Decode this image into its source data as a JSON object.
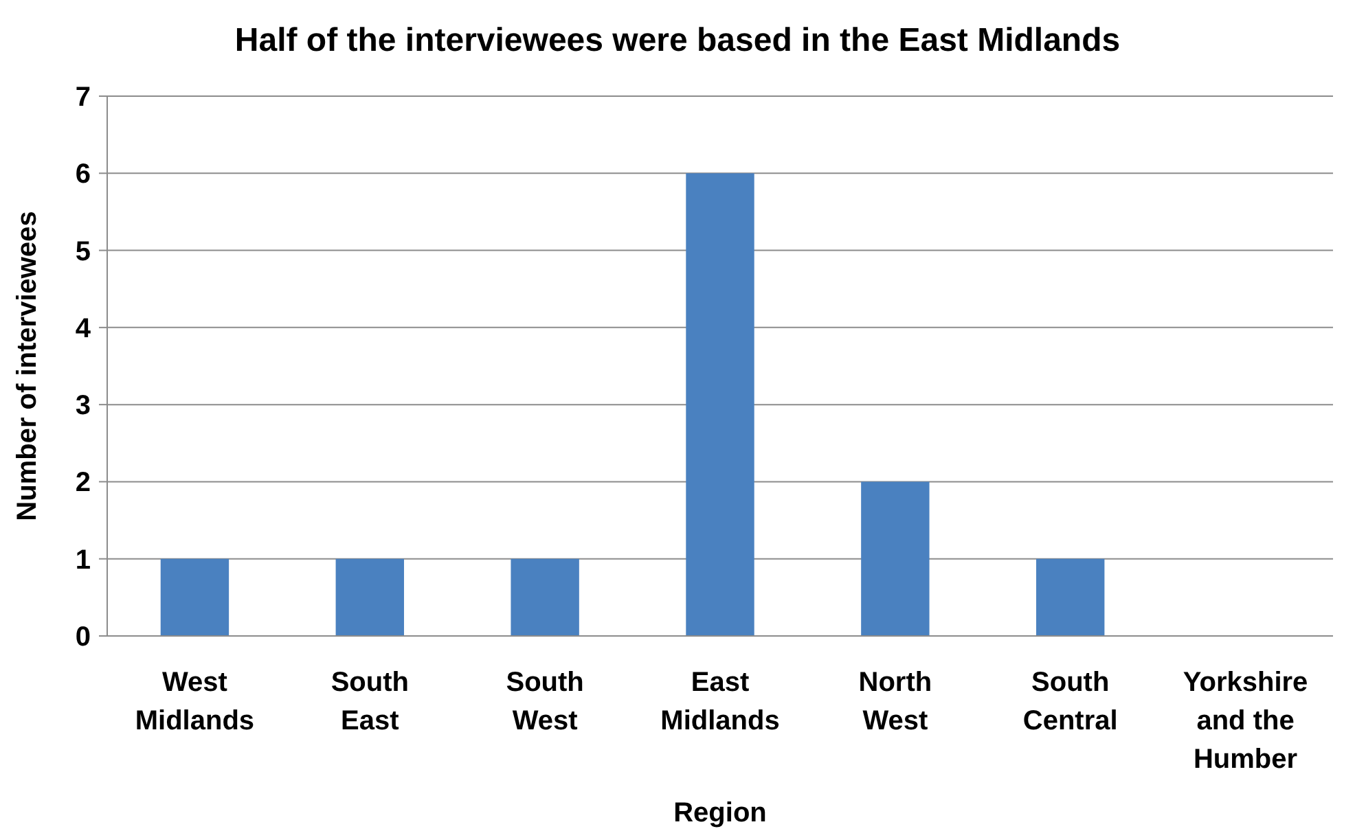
{
  "chart_data": {
    "type": "bar",
    "title": "Half of the interviewees were based in the East Midlands",
    "xlabel": "Region",
    "ylabel": "Number of interviewees",
    "categories": [
      "West Midlands",
      "South East",
      "South West",
      "East Midlands",
      "North West",
      "South Central",
      "Yorkshire and the Humber"
    ],
    "values": [
      1,
      1,
      1,
      6,
      2,
      1,
      0
    ],
    "color": "#4a81c0",
    "ylim": [
      0,
      7
    ],
    "yticks": [
      0,
      1,
      2,
      3,
      4,
      5,
      6,
      7
    ],
    "grid": "y"
  }
}
